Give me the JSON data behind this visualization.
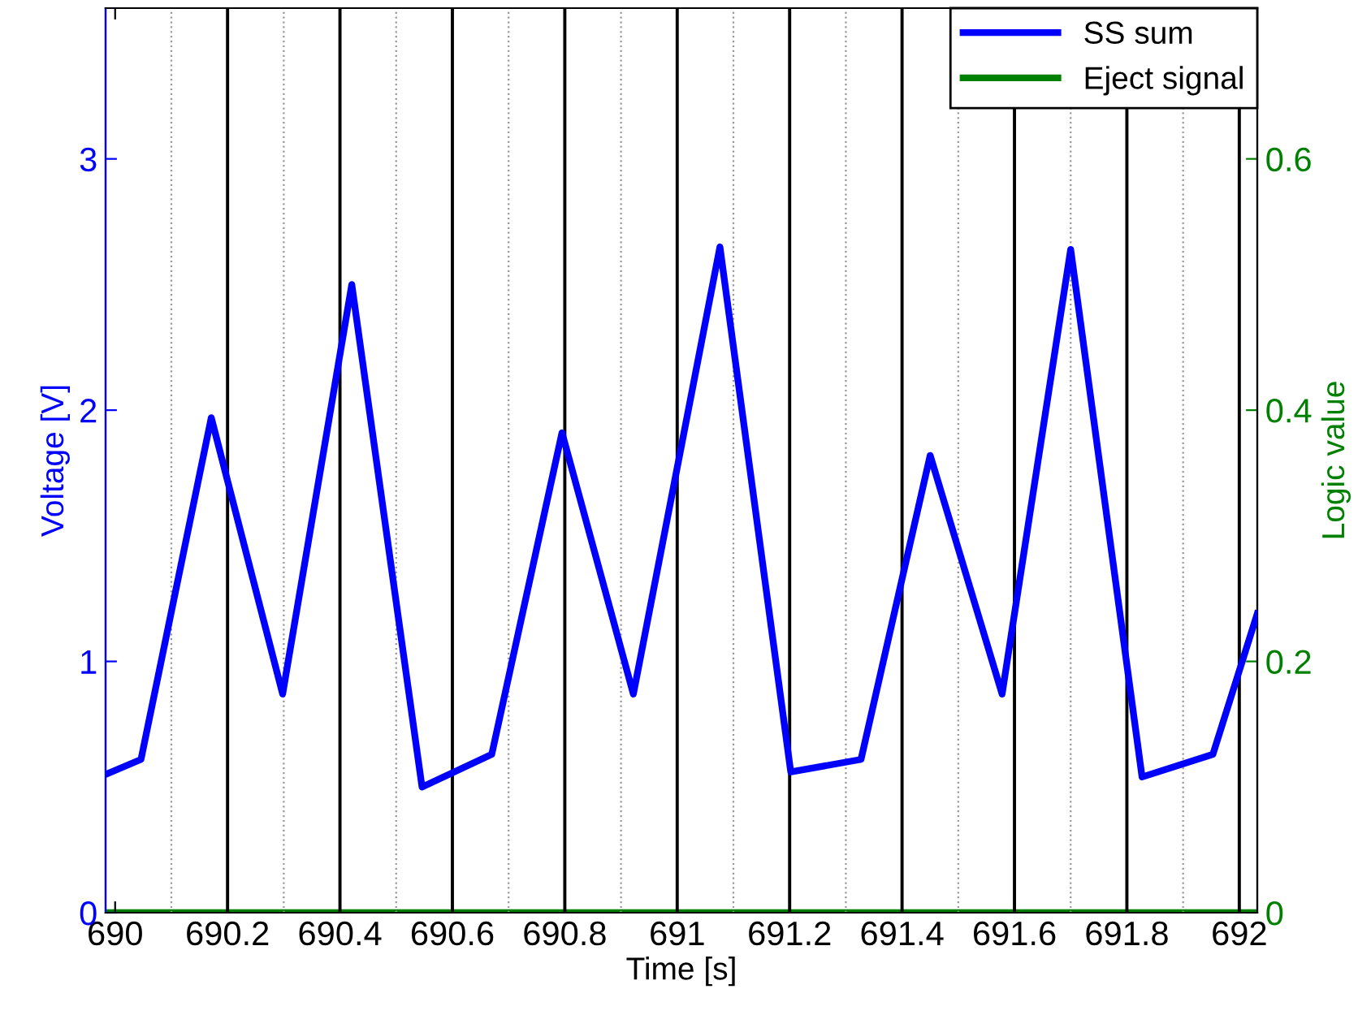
{
  "chart_data": {
    "type": "line",
    "xlabel": "Time [s]",
    "ylabel": "Voltage [V]",
    "y2label": "Logic value",
    "xlim": [
      689.983,
      692.032
    ],
    "xticks": [
      690,
      690.2,
      690.4,
      690.6,
      690.8,
      691,
      691.2,
      691.4,
      691.6,
      691.8,
      692
    ],
    "ylim": [
      0,
      3.6
    ],
    "yticks": [
      0,
      1,
      2,
      3
    ],
    "y2lim": [
      0,
      0.72
    ],
    "y2ticks": [
      0,
      0.2,
      0.4,
      0.6
    ],
    "grid": false,
    "legend": "top right",
    "line_style": "solid",
    "marker": "none",
    "series": [
      {
        "name": "SS sum",
        "color": "#0000ff",
        "x": [
          689.983,
          690.046,
          690.171,
          690.298,
          690.421,
          690.546,
          690.67,
          690.795,
          690.922,
          691.076,
          691.202,
          691.327,
          691.45,
          691.578,
          691.7,
          691.827,
          691.953,
          692.032
        ],
        "values": [
          0.55,
          0.61,
          1.97,
          0.87,
          2.5,
          0.5,
          0.63,
          1.91,
          0.87,
          2.65,
          0.56,
          0.61,
          1.82,
          0.87,
          2.64,
          0.54,
          0.63,
          1.19
        ]
      },
      {
        "name": "Eject signal",
        "color": "#008000",
        "axis": "y2",
        "x": [
          689.983,
          692.032
        ],
        "values": [
          0,
          0
        ]
      }
    ],
    "ref_lines": [
      {
        "axis": "x",
        "value": 690.1,
        "color": "#999999",
        "line_style": "dotted"
      },
      {
        "axis": "x",
        "value": 690.2,
        "color": "#000000",
        "line_style": "solid"
      },
      {
        "axis": "x",
        "value": 690.3,
        "color": "#999999",
        "line_style": "dotted"
      },
      {
        "axis": "x",
        "value": 690.4,
        "color": "#000000",
        "line_style": "solid"
      },
      {
        "axis": "x",
        "value": 690.5,
        "color": "#999999",
        "line_style": "dotted"
      },
      {
        "axis": "x",
        "value": 690.6,
        "color": "#000000",
        "line_style": "solid"
      },
      {
        "axis": "x",
        "value": 690.7,
        "color": "#999999",
        "line_style": "dotted"
      },
      {
        "axis": "x",
        "value": 690.8,
        "color": "#000000",
        "line_style": "solid"
      },
      {
        "axis": "x",
        "value": 690.9,
        "color": "#999999",
        "line_style": "dotted"
      },
      {
        "axis": "x",
        "value": 691,
        "color": "#000000",
        "line_style": "solid"
      },
      {
        "axis": "x",
        "value": 691.1,
        "color": "#999999",
        "line_style": "dotted"
      },
      {
        "axis": "x",
        "value": 691.2,
        "color": "#000000",
        "line_style": "solid"
      },
      {
        "axis": "x",
        "value": 691.3,
        "color": "#999999",
        "line_style": "dotted"
      },
      {
        "axis": "x",
        "value": 691.4,
        "color": "#000000",
        "line_style": "solid"
      },
      {
        "axis": "x",
        "value": 691.5,
        "color": "#999999",
        "line_style": "dotted"
      },
      {
        "axis": "x",
        "value": 691.6,
        "color": "#000000",
        "line_style": "solid"
      },
      {
        "axis": "x",
        "value": 691.7,
        "color": "#999999",
        "line_style": "dotted"
      },
      {
        "axis": "x",
        "value": 691.8,
        "color": "#000000",
        "line_style": "solid"
      },
      {
        "axis": "x",
        "value": 691.9,
        "color": "#999999",
        "line_style": "dotted"
      },
      {
        "axis": "x",
        "value": 692,
        "color": "#000000",
        "line_style": "solid"
      }
    ]
  }
}
